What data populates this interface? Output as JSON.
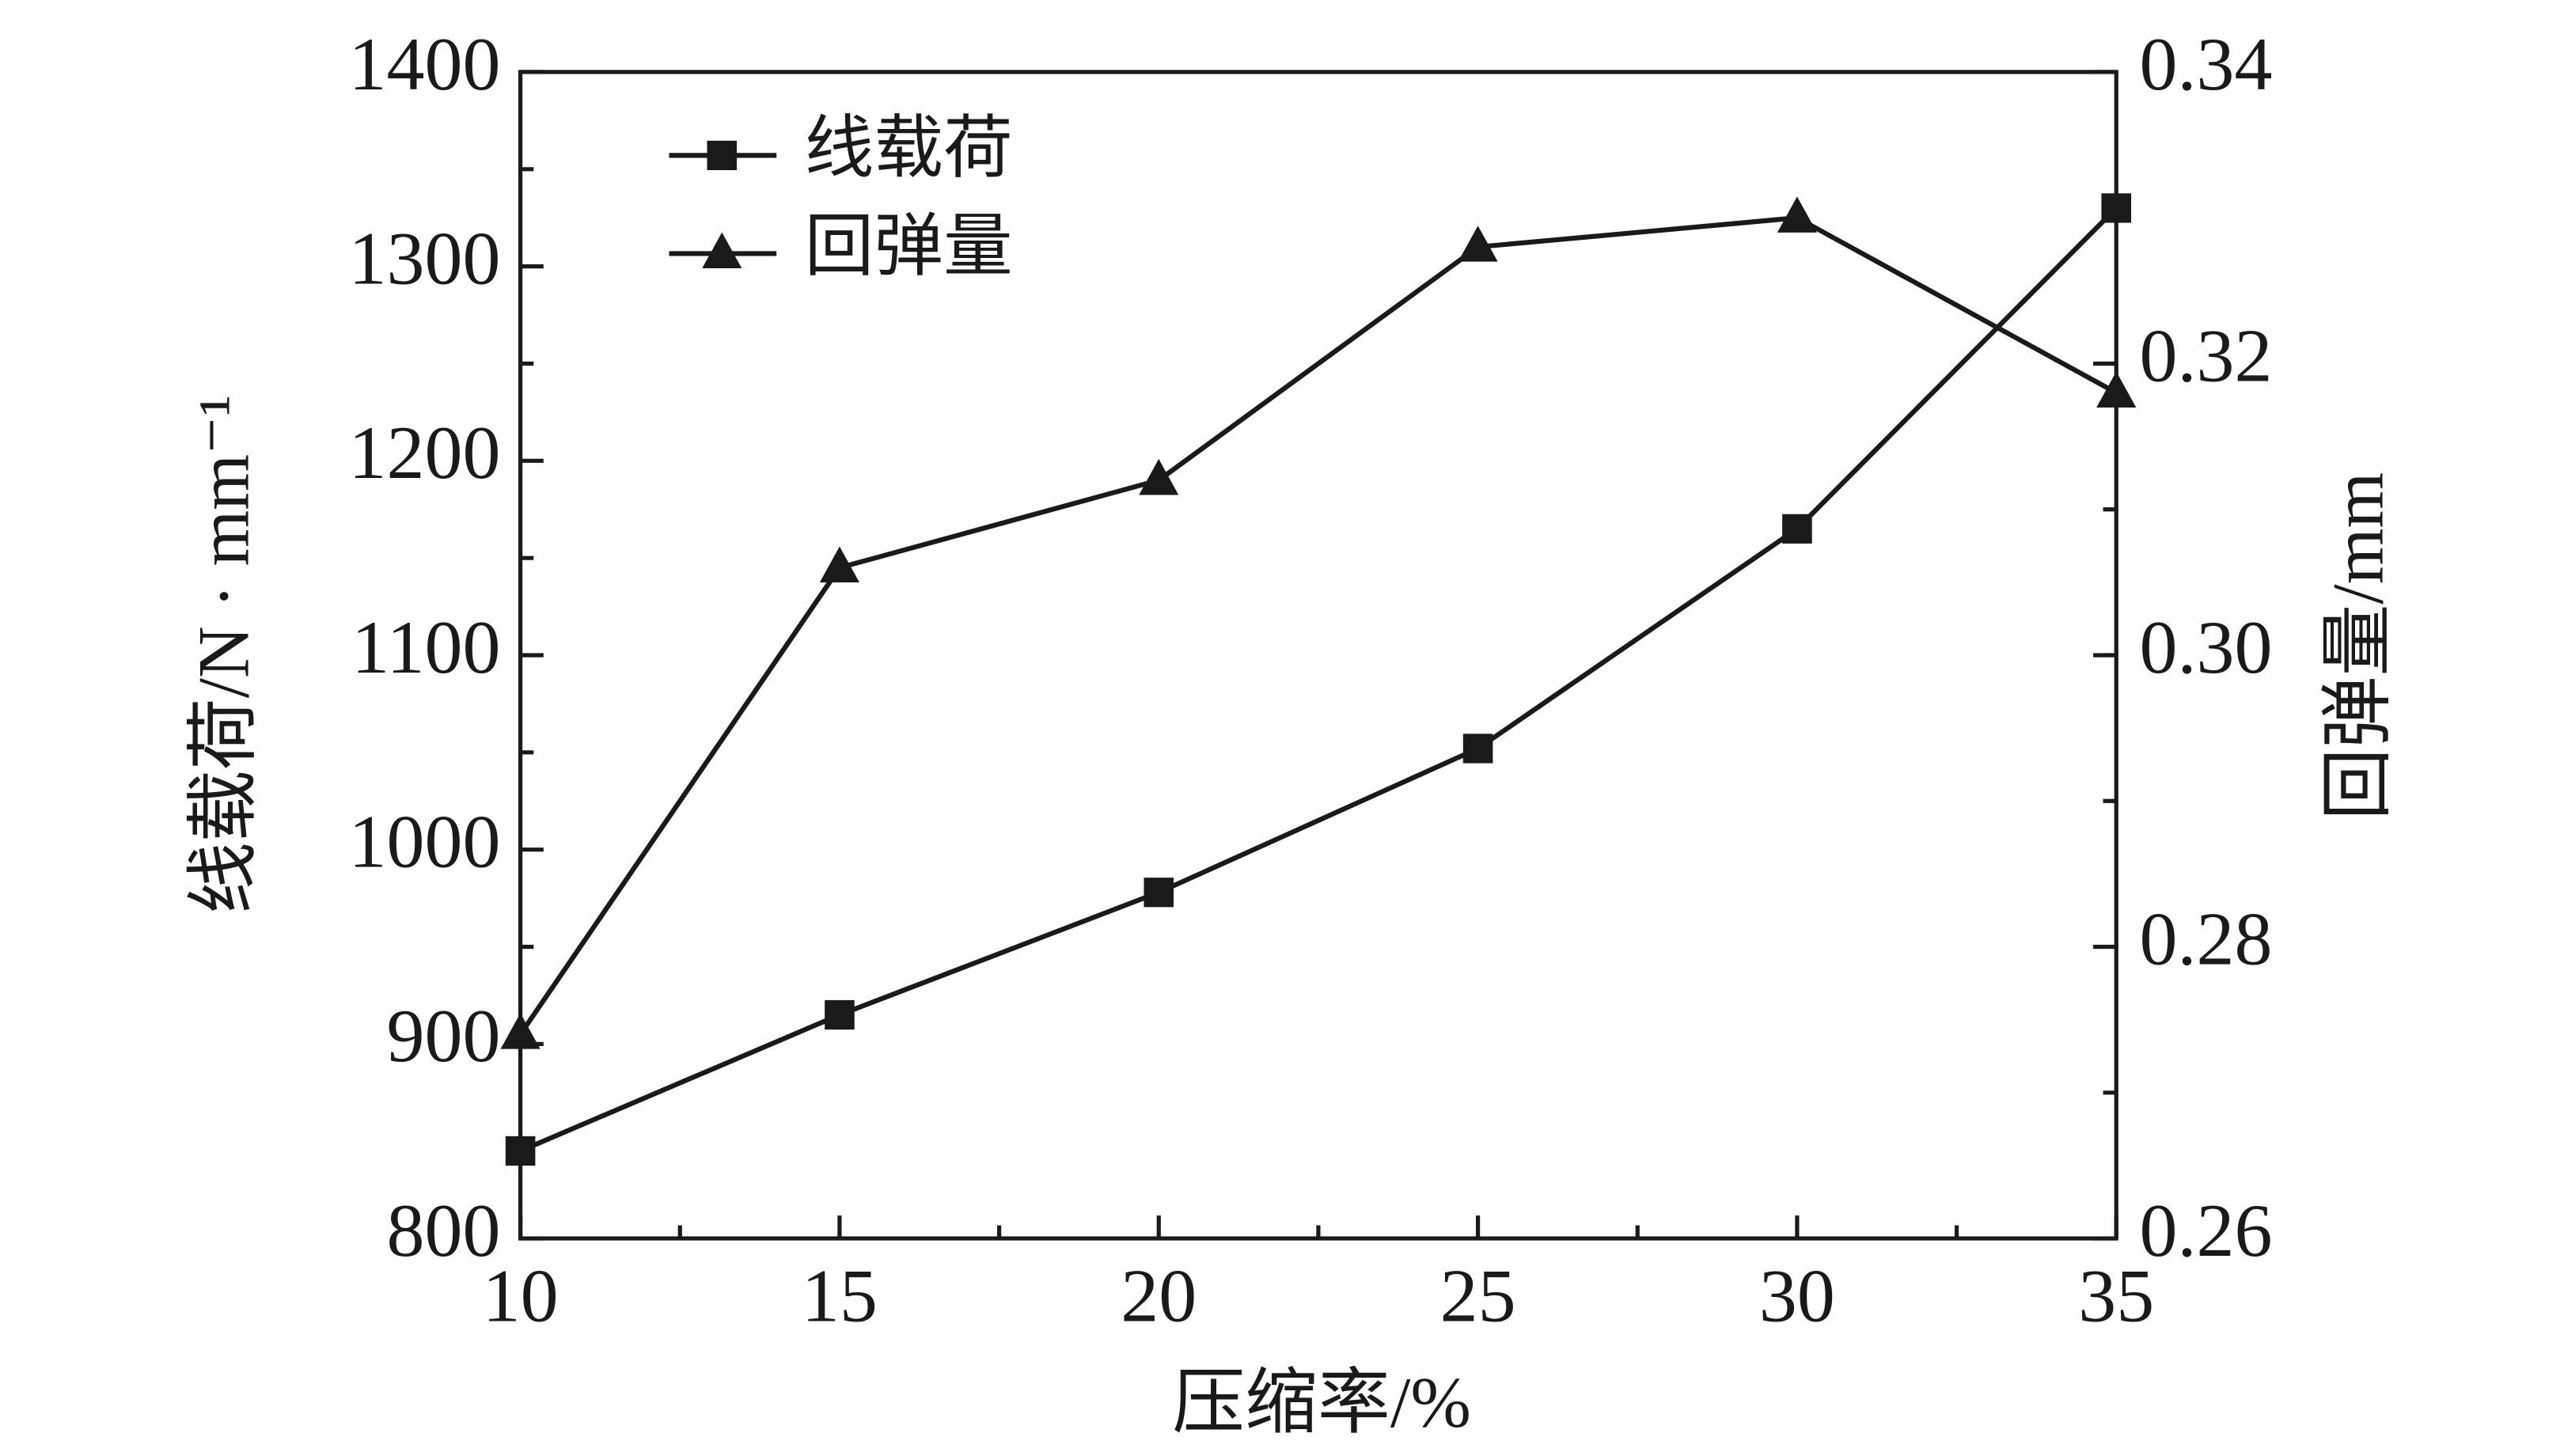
{
  "chart_data": {
    "type": "line",
    "xlabel": "压缩率/%",
    "ylabel": "线载荷/N · mm⁻¹",
    "y2label": "回弹量/mm",
    "x": [
      10,
      15,
      20,
      25,
      30,
      35
    ],
    "series": [
      {
        "name": "线载荷",
        "color": "#1a1a1a",
        "marker": "square",
        "values": [
          845,
          915,
          978,
          1052,
          1165,
          1330
        ]
      },
      {
        "name": "回弹量",
        "color": "#1a1a1a",
        "marker": "triangle",
        "axis": "y2",
        "values": [
          0.274,
          0.306,
          0.312,
          0.328,
          0.33,
          0.318
        ]
      }
    ],
    "xlim": [
      10,
      35
    ],
    "xticks": [
      10,
      15,
      20,
      25,
      30,
      35
    ],
    "xminorticks": [
      12.5,
      17.5,
      22.5,
      27.5,
      32.5
    ],
    "ylim": [
      800,
      1400
    ],
    "yticks": [
      800,
      900,
      1000,
      1100,
      1200,
      1300,
      1400
    ],
    "yminorticks": [
      850,
      950,
      1050,
      1150,
      1250,
      1350
    ],
    "y2lim": [
      0.26,
      0.34
    ],
    "y2ticks": [
      0.26,
      0.28,
      {
        "value": 0.3,
        "label": "0.30"
      },
      0.32,
      0.34
    ],
    "y2minorticks": [
      0.27,
      0.29,
      0.31,
      0.33
    ],
    "legend": "upper left",
    "grid": false
  }
}
